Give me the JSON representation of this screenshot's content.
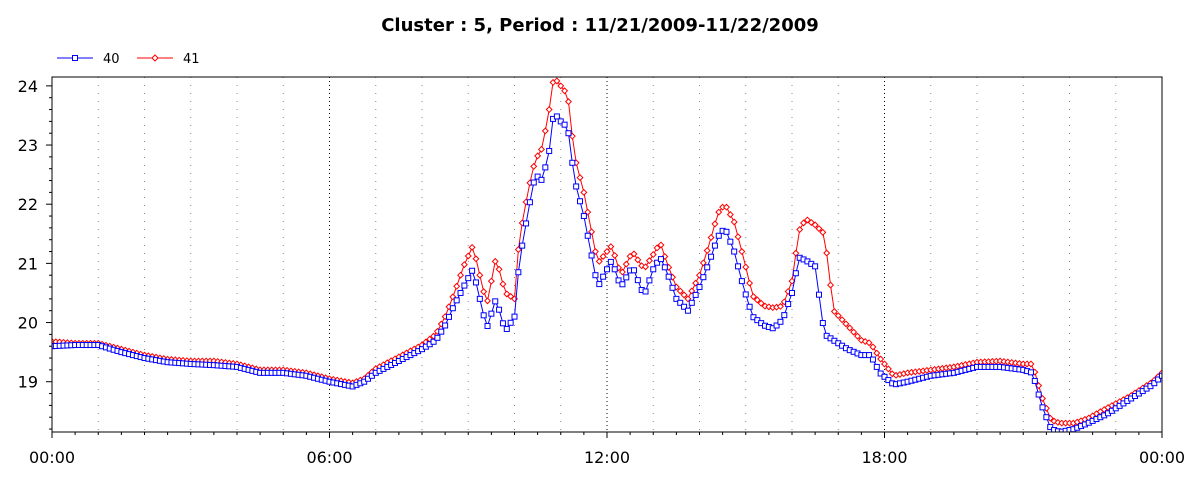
{
  "chart_data": {
    "type": "line",
    "title": "Cluster : 5, Period : 11/21/2009-11/22/2009",
    "xlabel": "",
    "ylabel": "",
    "x_range_hours": [
      0,
      24
    ],
    "xlim_labels": [
      "00:00",
      "00:00"
    ],
    "ylim": [
      18.15,
      24.15
    ],
    "x_tick_labels": [
      "00:00",
      "06:00",
      "12:00",
      "18:00",
      "00:00"
    ],
    "y_tick_labels": [
      "19",
      "20",
      "21",
      "22",
      "23",
      "24"
    ],
    "grid": "vertical dotted lines at 6-hour marks and hourly; dotted horizontal tick marks",
    "legend_placement": "top-left",
    "series": [
      {
        "name": "40",
        "color": "#0000ff",
        "marker": "square",
        "points": [
          [
            0,
            19.6
          ],
          [
            0.5,
            19.62
          ],
          [
            1,
            19.62
          ],
          [
            1.5,
            19.5
          ],
          [
            2,
            19.4
          ],
          [
            2.5,
            19.33
          ],
          [
            3,
            19.3
          ],
          [
            3.5,
            19.28
          ],
          [
            4,
            19.25
          ],
          [
            4.5,
            19.15
          ],
          [
            5,
            19.15
          ],
          [
            5.5,
            19.1
          ],
          [
            6,
            19.0
          ],
          [
            6.5,
            18.92
          ],
          [
            6.75,
            19.0
          ],
          [
            7,
            19.15
          ],
          [
            7.5,
            19.35
          ],
          [
            8,
            19.55
          ],
          [
            8.3,
            19.7
          ],
          [
            8.5,
            19.95
          ],
          [
            8.7,
            20.3
          ],
          [
            8.9,
            20.6
          ],
          [
            9.1,
            20.9
          ],
          [
            9.25,
            20.4
          ],
          [
            9.4,
            19.9
          ],
          [
            9.6,
            20.4
          ],
          [
            9.8,
            19.85
          ],
          [
            10,
            20.1
          ],
          [
            10.1,
            21.0
          ],
          [
            10.3,
            21.9
          ],
          [
            10.45,
            22.5
          ],
          [
            10.6,
            22.4
          ],
          [
            10.75,
            22.9
          ],
          [
            10.85,
            23.55
          ],
          [
            11,
            23.4
          ],
          [
            11.15,
            23.3
          ],
          [
            11.3,
            22.4
          ],
          [
            11.5,
            21.8
          ],
          [
            11.65,
            21.2
          ],
          [
            11.8,
            20.6
          ],
          [
            12.0,
            20.9
          ],
          [
            12.1,
            21.05
          ],
          [
            12.3,
            20.6
          ],
          [
            12.55,
            20.95
          ],
          [
            12.8,
            20.45
          ],
          [
            13.0,
            20.9
          ],
          [
            13.15,
            21.1
          ],
          [
            13.3,
            20.85
          ],
          [
            13.5,
            20.4
          ],
          [
            13.75,
            20.2
          ],
          [
            14.0,
            20.6
          ],
          [
            14.2,
            21.0
          ],
          [
            14.4,
            21.45
          ],
          [
            14.55,
            21.6
          ],
          [
            14.75,
            21.2
          ],
          [
            14.95,
            20.6
          ],
          [
            15.15,
            20.1
          ],
          [
            15.4,
            19.95
          ],
          [
            15.6,
            19.9
          ],
          [
            15.8,
            20.05
          ],
          [
            16.0,
            20.5
          ],
          [
            16.15,
            21.1
          ],
          [
            16.3,
            21.05
          ],
          [
            16.5,
            20.95
          ],
          [
            16.7,
            19.8
          ],
          [
            16.9,
            19.7
          ],
          [
            17.2,
            19.55
          ],
          [
            17.5,
            19.45
          ],
          [
            17.7,
            19.45
          ],
          [
            17.9,
            19.15
          ],
          [
            18.2,
            18.95
          ],
          [
            18.5,
            19.0
          ],
          [
            19.0,
            19.1
          ],
          [
            19.5,
            19.15
          ],
          [
            20.0,
            19.25
          ],
          [
            20.5,
            19.25
          ],
          [
            21.0,
            19.2
          ],
          [
            21.2,
            19.15
          ],
          [
            21.4,
            18.6
          ],
          [
            21.6,
            18.2
          ],
          [
            21.8,
            18.15
          ],
          [
            22.1,
            18.2
          ],
          [
            22.4,
            18.3
          ],
          [
            22.8,
            18.45
          ],
          [
            23.3,
            18.7
          ],
          [
            23.8,
            18.95
          ],
          [
            24.0,
            19.1
          ]
        ]
      },
      {
        "name": "41",
        "color": "#ff0000",
        "marker": "diamond",
        "points": [
          [
            0,
            19.68
          ],
          [
            0.5,
            19.65
          ],
          [
            1,
            19.65
          ],
          [
            1.5,
            19.55
          ],
          [
            2,
            19.45
          ],
          [
            2.5,
            19.38
          ],
          [
            3,
            19.35
          ],
          [
            3.5,
            19.35
          ],
          [
            4,
            19.3
          ],
          [
            4.5,
            19.2
          ],
          [
            5,
            19.2
          ],
          [
            5.5,
            19.15
          ],
          [
            6,
            19.05
          ],
          [
            6.5,
            18.98
          ],
          [
            6.75,
            19.05
          ],
          [
            7,
            19.22
          ],
          [
            7.5,
            19.42
          ],
          [
            8,
            19.62
          ],
          [
            8.3,
            19.8
          ],
          [
            8.5,
            20.1
          ],
          [
            8.7,
            20.5
          ],
          [
            8.9,
            20.95
          ],
          [
            9.1,
            21.3
          ],
          [
            9.25,
            20.8
          ],
          [
            9.4,
            20.3
          ],
          [
            9.6,
            21.1
          ],
          [
            9.8,
            20.5
          ],
          [
            10,
            20.4
          ],
          [
            10.1,
            21.4
          ],
          [
            10.3,
            22.25
          ],
          [
            10.45,
            22.75
          ],
          [
            10.6,
            22.95
          ],
          [
            10.75,
            23.6
          ],
          [
            10.85,
            24.15
          ],
          [
            11,
            24.0
          ],
          [
            11.15,
            23.85
          ],
          [
            11.3,
            22.8
          ],
          [
            11.5,
            22.2
          ],
          [
            11.65,
            21.6
          ],
          [
            11.8,
            21.0
          ],
          [
            12.0,
            21.2
          ],
          [
            12.1,
            21.3
          ],
          [
            12.3,
            20.8
          ],
          [
            12.55,
            21.2
          ],
          [
            12.8,
            20.9
          ],
          [
            13.0,
            21.15
          ],
          [
            13.15,
            21.35
          ],
          [
            13.3,
            21.0
          ],
          [
            13.5,
            20.6
          ],
          [
            13.75,
            20.4
          ],
          [
            14.0,
            20.8
          ],
          [
            14.2,
            21.3
          ],
          [
            14.4,
            21.85
          ],
          [
            14.55,
            22.0
          ],
          [
            14.75,
            21.7
          ],
          [
            14.95,
            21.1
          ],
          [
            15.15,
            20.45
          ],
          [
            15.4,
            20.28
          ],
          [
            15.6,
            20.25
          ],
          [
            15.8,
            20.28
          ],
          [
            16.0,
            20.7
          ],
          [
            16.15,
            21.55
          ],
          [
            16.3,
            21.75
          ],
          [
            16.5,
            21.65
          ],
          [
            16.7,
            21.5
          ],
          [
            16.9,
            20.2
          ],
          [
            17.2,
            19.95
          ],
          [
            17.5,
            19.7
          ],
          [
            17.7,
            19.65
          ],
          [
            17.9,
            19.4
          ],
          [
            18.2,
            19.1
          ],
          [
            18.5,
            19.15
          ],
          [
            19.0,
            19.2
          ],
          [
            19.5,
            19.25
          ],
          [
            20.0,
            19.33
          ],
          [
            20.5,
            19.35
          ],
          [
            21.0,
            19.3
          ],
          [
            21.2,
            19.3
          ],
          [
            21.4,
            18.75
          ],
          [
            21.6,
            18.35
          ],
          [
            21.8,
            18.3
          ],
          [
            22.1,
            18.3
          ],
          [
            22.4,
            18.38
          ],
          [
            22.8,
            18.55
          ],
          [
            23.3,
            18.75
          ],
          [
            23.8,
            19.0
          ],
          [
            24.0,
            19.15
          ]
        ]
      }
    ]
  },
  "legend": {
    "items": [
      {
        "label": "40",
        "color": "#0000ff",
        "marker": "square"
      },
      {
        "label": "41",
        "color": "#ff0000",
        "marker": "diamond"
      }
    ]
  },
  "colors": {
    "axis": "#000000",
    "grid": "#000000",
    "background": "#ffffff"
  }
}
